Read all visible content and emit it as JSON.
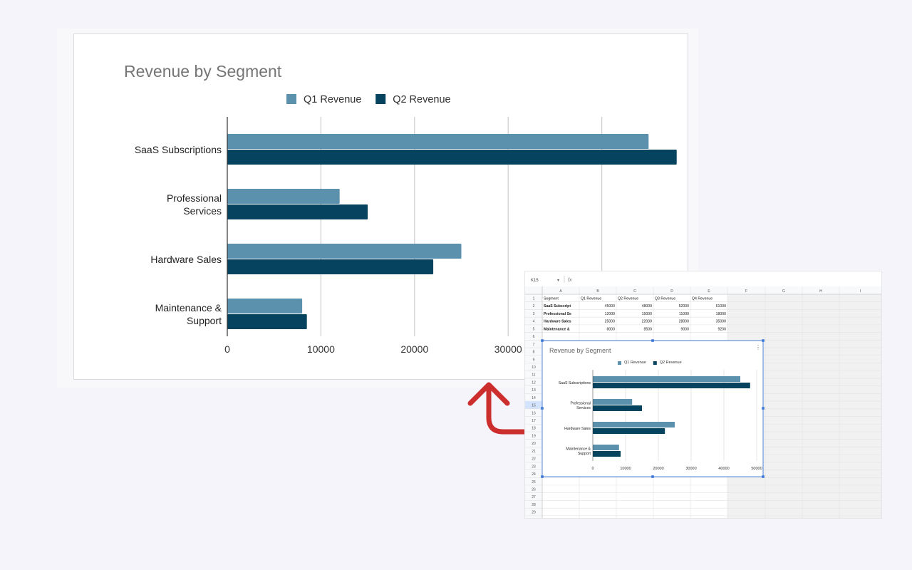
{
  "chart_data": {
    "type": "bar",
    "orientation": "horizontal",
    "title": "Revenue by Segment",
    "categories": [
      [
        "SaaS Subscriptions"
      ],
      [
        "Professional",
        "Services"
      ],
      [
        "Hardware Sales"
      ],
      [
        "Maintenance &",
        "Support"
      ]
    ],
    "series": [
      {
        "name": "Q1 Revenue",
        "values": [
          45000,
          12000,
          25000,
          8000
        ],
        "color": "#5b91ad"
      },
      {
        "name": "Q2 Revenue",
        "values": [
          48000,
          15000,
          22000,
          8500
        ],
        "color": "#05435f"
      }
    ],
    "xlim": [
      0,
      50000
    ],
    "ticks_large": [
      "0",
      "10000",
      "20000",
      "30000"
    ],
    "ticks_small": [
      "0",
      "10000",
      "20000",
      "30000",
      "40000",
      "50000"
    ],
    "grid": true,
    "legend_position": "top"
  },
  "sheet": {
    "name_box": "K15",
    "fx_label": "fx",
    "columns": [
      "A",
      "B",
      "C",
      "D",
      "E",
      "F",
      "G",
      "H",
      "I"
    ],
    "header_row": [
      "Segment",
      "Q1 Revenue",
      "Q2 Revenue",
      "Q3 Revenue",
      "Q4 Revenue"
    ],
    "rows": [
      [
        "SaaS Subscript",
        "45000",
        "48000",
        "52000",
        "61000"
      ],
      [
        "Professional Se",
        "12000",
        "15000",
        "11000",
        "18000"
      ],
      [
        "Hardware Sales",
        "25000",
        "22000",
        "28000",
        "35000"
      ],
      [
        "Maintenance &",
        "8000",
        "8500",
        "9000",
        "9200"
      ]
    ],
    "row_numbers": [
      "1",
      "2",
      "3",
      "4",
      "5",
      "6",
      "7",
      "8",
      "9",
      "10",
      "11",
      "12",
      "13",
      "14",
      "15",
      "16",
      "17",
      "18",
      "19",
      "20",
      "21",
      "22",
      "23",
      "24",
      "25",
      "26",
      "27",
      "28",
      "29"
    ],
    "selected_row": "15",
    "chart_menu_icon": "more-vert-icon"
  },
  "annotation": {
    "arrow_color": "#cc2e2e",
    "arrow_icon": "curved-arrow-up-icon"
  }
}
